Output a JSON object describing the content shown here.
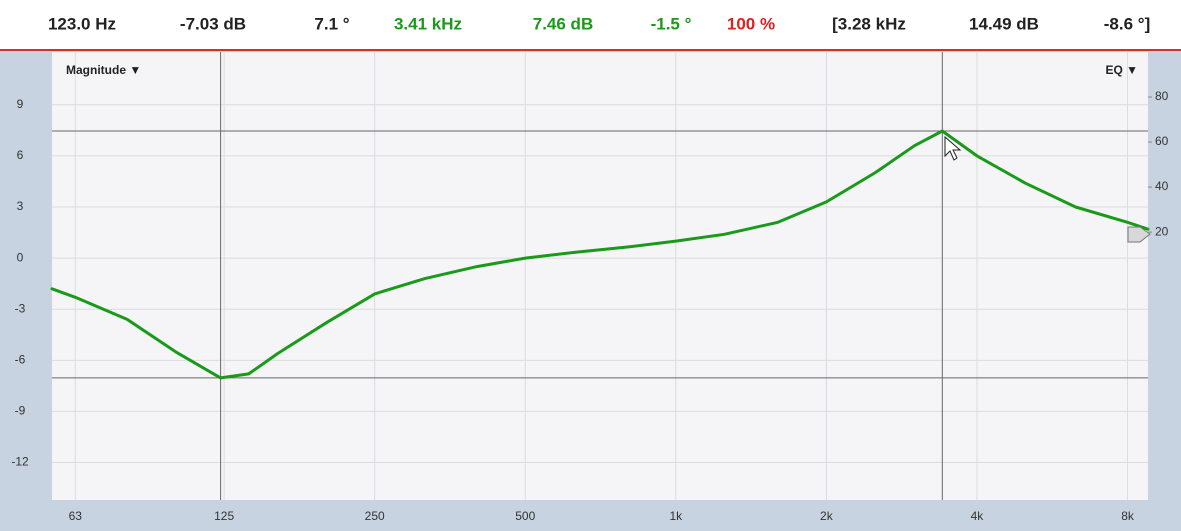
{
  "header": {
    "readouts": [
      {
        "label": "123.0 Hz",
        "color": "#222222"
      },
      {
        "label": "-7.03 dB",
        "color": "#222222"
      },
      {
        "label": "7.1 °",
        "color": "#222222"
      },
      {
        "label": "3.41 kHz",
        "color": "#1a9a1a"
      },
      {
        "label": "7.46 dB",
        "color": "#1a9a1a"
      },
      {
        "label": "-1.5 °",
        "color": "#1a9a1a"
      },
      {
        "label": "100 %",
        "color": "#e02020"
      },
      {
        "label": "[3.28 kHz",
        "color": "#222222"
      },
      {
        "label": "14.49 dB",
        "color": "#222222"
      },
      {
        "label": "-8.6 °]",
        "color": "#222222"
      }
    ]
  },
  "chart_data": {
    "type": "line",
    "y_menu": "Magnitude ▼",
    "y2_menu": "EQ ▼",
    "log_x": true,
    "grid": true,
    "xlim": [
      56.6,
      8790
    ],
    "xticks": [
      {
        "value": 63,
        "label": "63"
      },
      125,
      250,
      500,
      {
        "value": 1000,
        "label": "1k"
      },
      {
        "value": 2000,
        "label": "2k"
      },
      {
        "value": 4000,
        "label": "4k"
      },
      {
        "value": 8000,
        "label": "8k"
      }
    ],
    "ylim": [
      -14.2,
      12.1
    ],
    "yticks": [
      -12,
      -9,
      -6,
      -3,
      0,
      3,
      6,
      9
    ],
    "y2lim": [
      -99,
      100
    ],
    "y2ticks": [
      20,
      40,
      60,
      80
    ],
    "cursors": [
      {
        "x": 123.0,
        "y": -7.03
      },
      {
        "x": 3410,
        "y": 7.46
      }
    ],
    "series": [
      {
        "name": "Magnitude",
        "color": "#1a9a1a",
        "x": [
          56.6,
          63,
          80,
          100,
          123,
          140,
          160,
          200,
          250,
          315,
          400,
          500,
          630,
          800,
          1000,
          1250,
          1600,
          2000,
          2500,
          3000,
          3410,
          4000,
          5000,
          6300,
          8000,
          8790
        ],
        "values": [
          -1.8,
          -2.3,
          -3.6,
          -5.5,
          -7.03,
          -6.8,
          -5.6,
          -3.8,
          -2.1,
          -1.2,
          -0.5,
          0.0,
          0.35,
          0.65,
          1.0,
          1.4,
          2.1,
          3.3,
          5.0,
          6.6,
          7.46,
          6.0,
          4.4,
          3.0,
          2.1,
          1.7
        ]
      }
    ]
  }
}
